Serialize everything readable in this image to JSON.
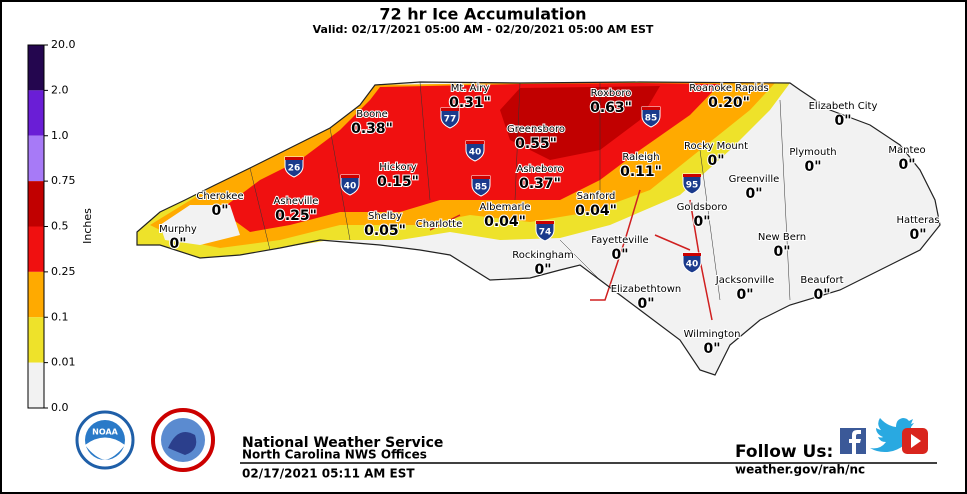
{
  "header": {
    "title": "72 hr Ice Accumulation",
    "valid": "Valid: 02/17/2021 05:00 AM - 02/20/2021 05:00 AM EST"
  },
  "legend": {
    "label": "Inches",
    "ticks": [
      "20.0",
      "2.0",
      "1.0",
      "0.75",
      "0.5",
      "0.25",
      "0.1",
      "0.01",
      "0.0"
    ],
    "colors": [
      "#24064f",
      "#6a1ed6",
      "#a77af7",
      "#c10000",
      "#f01010",
      "#ffaa00",
      "#eee22a",
      "#f2f2f2"
    ]
  },
  "map": {
    "cities": [
      {
        "name": "Mt. Airy",
        "amount": "0.31\""
      },
      {
        "name": "Roxboro",
        "amount": "0.63\""
      },
      {
        "name": "Roanoke Rapids",
        "amount": "0.20\""
      },
      {
        "name": "Elizabeth City",
        "amount": "0\""
      },
      {
        "name": "Boone",
        "amount": "0.38\""
      },
      {
        "name": "Greensboro",
        "amount": "0.55\""
      },
      {
        "name": "Rocky Mount",
        "amount": "0\""
      },
      {
        "name": "Plymouth",
        "amount": "0\""
      },
      {
        "name": "Manteo",
        "amount": "0\""
      },
      {
        "name": "Hickory",
        "amount": "0.15\""
      },
      {
        "name": "Raleigh",
        "amount": "0.11\""
      },
      {
        "name": "Asheboro",
        "amount": "0.37\""
      },
      {
        "name": "Cherokee",
        "amount": "0\""
      },
      {
        "name": "Asheville",
        "amount": "0.25\""
      },
      {
        "name": "Greenville",
        "amount": "0\""
      },
      {
        "name": "Sanford",
        "amount": "0.04\""
      },
      {
        "name": "Goldsboro",
        "amount": "0\""
      },
      {
        "name": "Shelby",
        "amount": "0.05\""
      },
      {
        "name": "Charlotte"
      },
      {
        "name": "Albemarle",
        "amount": "0.04\""
      },
      {
        "name": "Hatteras",
        "amount": "0\""
      },
      {
        "name": "Murphy",
        "amount": "0\""
      },
      {
        "name": "New Bern",
        "amount": "0\""
      },
      {
        "name": "Fayetteville",
        "amount": "0\""
      },
      {
        "name": "Rockingham",
        "amount": "0\""
      },
      {
        "name": "Jacksonville",
        "amount": "0\""
      },
      {
        "name": "Beaufort",
        "amount": "0\""
      },
      {
        "name": "Elizabethtown",
        "amount": "0\""
      },
      {
        "name": "Wilmington",
        "amount": "0\""
      }
    ],
    "interstates": [
      "77",
      "85",
      "26",
      "40",
      "40",
      "85",
      "95",
      "74",
      "40"
    ]
  },
  "footer": {
    "agency": "National Weather Service",
    "offices": "North Carolina NWS Offices",
    "issued": "02/17/2021 05:11 AM EST",
    "follow": "Follow Us:",
    "url": "weather.gov/rah/nc"
  }
}
